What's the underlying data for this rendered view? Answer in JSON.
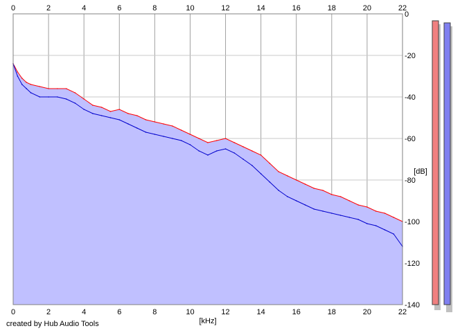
{
  "chart_data": {
    "type": "area",
    "xlabel": "[kHz]",
    "ylabel": "[dB]",
    "xlim": [
      0,
      22
    ],
    "ylim": [
      -140,
      0
    ],
    "x_ticks": [
      "0",
      "2",
      "4",
      "6",
      "8",
      "10",
      "12",
      "14",
      "16",
      "18",
      "20",
      "22"
    ],
    "y_ticks": [
      "0",
      "-20",
      "-40",
      "-60",
      "-80",
      "-100",
      "-120",
      "-140"
    ],
    "grid": true,
    "series": [
      {
        "color": "#ff0000",
        "x": [
          0,
          0.25,
          0.5,
          0.75,
          1,
          1.5,
          2,
          2.5,
          3,
          3.5,
          4,
          4.5,
          5,
          5.5,
          6,
          6.5,
          7,
          7.5,
          8,
          8.5,
          9,
          9.5,
          10,
          10.5,
          11,
          11.5,
          12,
          12.5,
          13,
          13.5,
          14,
          14.5,
          15,
          15.5,
          16,
          16.5,
          17,
          17.5,
          18,
          18.5,
          19,
          19.5,
          20,
          20.5,
          21,
          21.5,
          22
        ],
        "values": [
          -24,
          -28,
          -31,
          -33,
          -34,
          -35,
          -36,
          -36,
          -36,
          -38,
          -41,
          -44,
          -45,
          -47,
          -46,
          -48,
          -49,
          -51,
          -52,
          -53,
          -54,
          -56,
          -58,
          -60,
          -62,
          -61,
          -60,
          -62,
          -64,
          -66,
          -68,
          -72,
          -76,
          -78,
          -80,
          -82,
          -84,
          -85,
          -87,
          -88,
          -90,
          -92,
          -93,
          -95,
          -96,
          -98,
          -100
        ]
      },
      {
        "color": "#0000cc",
        "x": [
          0,
          0.25,
          0.5,
          0.75,
          1,
          1.5,
          2,
          2.5,
          3,
          3.5,
          4,
          4.5,
          5,
          5.5,
          6,
          6.5,
          7,
          7.5,
          8,
          8.5,
          9,
          9.5,
          10,
          10.5,
          11,
          11.5,
          12,
          12.5,
          13,
          13.5,
          14,
          14.5,
          15,
          15.5,
          16,
          16.5,
          17,
          17.5,
          18,
          18.5,
          19,
          19.5,
          20,
          20.5,
          21,
          21.5,
          22
        ],
        "values": [
          -24,
          -30,
          -34,
          -36,
          -38,
          -40,
          -40,
          -40,
          -41,
          -43,
          -46,
          -48,
          -49,
          -50,
          -51,
          -53,
          -55,
          -57,
          -58,
          -59,
          -60,
          -61,
          -63,
          -66,
          -68,
          -66,
          -65,
          -67,
          -70,
          -73,
          -77,
          -81,
          -85,
          -88,
          -90,
          -92,
          -94,
          -95,
          -96,
          -97,
          -98,
          -99,
          -101,
          -102,
          -104,
          -106,
          -112
        ]
      }
    ],
    "fill_color": "#c0c0ff",
    "level_meters": [
      {
        "color": "#f08080"
      },
      {
        "color": "#8080f0"
      }
    ]
  },
  "footer_text": "created by Hub Audio Tools"
}
